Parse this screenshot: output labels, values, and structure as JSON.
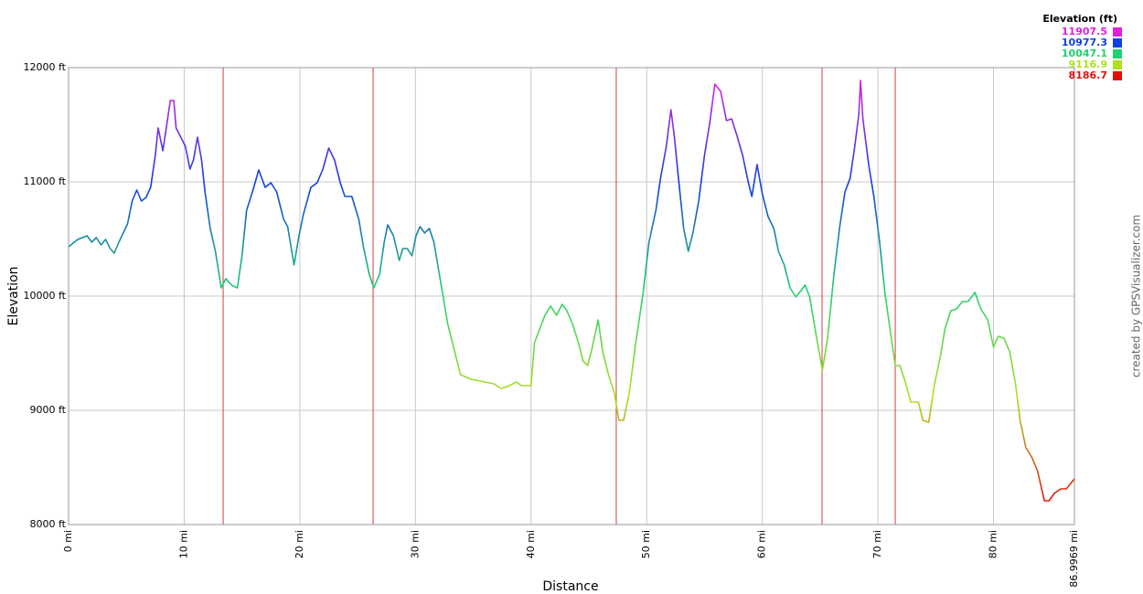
{
  "chart_data": {
    "type": "line",
    "x_label": "Distance",
    "y_label": "Elevation",
    "credit": "created by GPSVisualizer.com",
    "legend": {
      "title": "Elevation (ft)",
      "values": [
        11907.5,
        10977.3,
        10047.1,
        9116.9,
        8186.7
      ],
      "colors": [
        "#e020e0",
        "#1040e0",
        "#20d070",
        "#b0e020",
        "#e01010"
      ]
    },
    "legend_position": "top-right",
    "grid": true,
    "xlim": [
      0,
      86.9969
    ],
    "ylim": [
      8000,
      12000
    ],
    "xticks": [
      {
        "value": 0,
        "label": "0 mi"
      },
      {
        "value": 10,
        "label": "10 mi"
      },
      {
        "value": 20,
        "label": "20 mi"
      },
      {
        "value": 30,
        "label": "30 mi"
      },
      {
        "value": 40,
        "label": "40 mi"
      },
      {
        "value": 50,
        "label": "50 mi"
      },
      {
        "value": 60,
        "label": "60 mi"
      },
      {
        "value": 70,
        "label": "70 mi"
      },
      {
        "value": 80,
        "label": "80 mi"
      },
      {
        "value": 86.9969,
        "label": "86.9969 mi"
      }
    ],
    "yticks": [
      {
        "value": 8000,
        "label": "8000 ft"
      },
      {
        "value": 9000,
        "label": "9000 ft"
      },
      {
        "value": 10000,
        "label": "10000 ft"
      },
      {
        "value": 11000,
        "label": "11000 ft"
      },
      {
        "value": 12000,
        "label": "12000 ft"
      }
    ],
    "markers": {
      "x": [
        13.37,
        26.34,
        47.37,
        65.17,
        71.5
      ],
      "color": "#d04040"
    },
    "x": [
      0,
      0.8,
      1.6,
      2.0,
      2.4,
      2.8,
      3.2,
      3.6,
      3.95,
      4.35,
      5.1,
      5.5,
      5.9,
      6.3,
      6.7,
      7.1,
      7.5,
      7.75,
      8.15,
      8.45,
      8.8,
      9.1,
      9.3,
      9.7,
      10.1,
      10.5,
      10.8,
      11.15,
      11.5,
      11.8,
      12.25,
      12.7,
      13.2,
      13.6,
      14.1,
      14.6,
      15.0,
      15.4,
      15.9,
      16.45,
      17.0,
      17.5,
      18.0,
      18.6,
      18.95,
      19.5,
      19.9,
      20.3,
      20.96,
      21.5,
      22.0,
      22.5,
      23.0,
      23.5,
      23.9,
      24.5,
      25.1,
      25.5,
      26.0,
      26.4,
      26.9,
      27.3,
      27.6,
      28.1,
      28.6,
      28.9,
      29.3,
      29.7,
      30.05,
      30.4,
      30.8,
      31.2,
      31.6,
      32.2,
      32.8,
      33.4,
      33.9,
      34.8,
      36.0,
      36.8,
      37.4,
      37.95,
      38.75,
      39.15,
      40.0,
      40.3,
      40.75,
      41.2,
      41.7,
      42.2,
      42.7,
      43.1,
      43.6,
      44.1,
      44.5,
      44.9,
      45.3,
      45.8,
      46.2,
      46.7,
      47.2,
      47.6,
      48.0,
      48.5,
      49.0,
      49.7,
      50.2,
      50.8,
      51.2,
      51.7,
      52.1,
      52.4,
      52.75,
      53.2,
      53.6,
      54.0,
      54.5,
      55.0,
      55.45,
      55.9,
      56.4,
      56.9,
      57.35,
      57.8,
      58.3,
      58.8,
      59.1,
      59.55,
      60.0,
      60.5,
      61.0,
      61.4,
      61.9,
      62.4,
      62.9,
      63.35,
      63.7,
      64.1,
      64.7,
      65.2,
      65.65,
      66.2,
      66.7,
      67.15,
      67.6,
      68.0,
      68.35,
      68.5,
      68.7,
      69.2,
      69.65,
      70.15,
      70.6,
      71.1,
      71.5,
      71.9,
      72.3,
      72.85,
      73.5,
      73.9,
      74.4,
      74.9,
      75.4,
      75.8,
      76.3,
      76.8,
      77.3,
      77.8,
      78.4,
      78.9,
      79.5,
      80.0,
      80.4,
      80.9,
      81.4,
      81.9,
      82.3,
      82.8,
      83.3,
      83.8,
      84.4,
      84.8,
      85.25,
      85.8,
      86.3,
      86.9969
    ],
    "values": [
      10432,
      10496,
      10528,
      10472,
      10512,
      10448,
      10496,
      10416,
      10376,
      10472,
      10632,
      10832,
      10928,
      10832,
      10864,
      10952,
      11232,
      11472,
      11272,
      11472,
      11712,
      11712,
      11472,
      11392,
      11312,
      11112,
      11192,
      11392,
      11192,
      10912,
      10592,
      10392,
      10072,
      10152,
      10096,
      10072,
      10352,
      10752,
      10912,
      11104,
      10952,
      10992,
      10912,
      10672,
      10608,
      10272,
      10512,
      10712,
      10952,
      10992,
      11112,
      11296,
      11192,
      10992,
      10872,
      10872,
      10672,
      10432,
      10192,
      10072,
      10192,
      10472,
      10624,
      10528,
      10312,
      10416,
      10416,
      10352,
      10528,
      10608,
      10552,
      10592,
      10472,
      10112,
      9752,
      9512,
      9312,
      9272,
      9248,
      9232,
      9192,
      9208,
      9248,
      9216,
      9216,
      9592,
      9712,
      9832,
      9912,
      9832,
      9928,
      9872,
      9752,
      9592,
      9432,
      9392,
      9552,
      9792,
      9512,
      9312,
      9152,
      8912,
      8912,
      9152,
      9552,
      10032,
      10472,
      10752,
      11032,
      11312,
      11632,
      11392,
      11032,
      10592,
      10392,
      10552,
      10832,
      11232,
      11512,
      11856,
      11792,
      11536,
      11552,
      11408,
      11232,
      10992,
      10872,
      11152,
      10896,
      10696,
      10592,
      10392,
      10272,
      10072,
      9992,
      10048,
      10096,
      9992,
      9632,
      9352,
      9632,
      10192,
      10608,
      10912,
      11032,
      11312,
      11592,
      11888,
      11552,
      11152,
      10872,
      10472,
      10032,
      9672,
      9392,
      9392,
      9272,
      9072,
      9072,
      8912,
      8896,
      9232,
      9472,
      9712,
      9872,
      9888,
      9952,
      9952,
      10032,
      9888,
      9792,
      9552,
      9648,
      9632,
      9512,
      9232,
      8912,
      8672,
      8592,
      8472,
      8208,
      8208,
      8272,
      8312,
      8312,
      8400
    ]
  }
}
